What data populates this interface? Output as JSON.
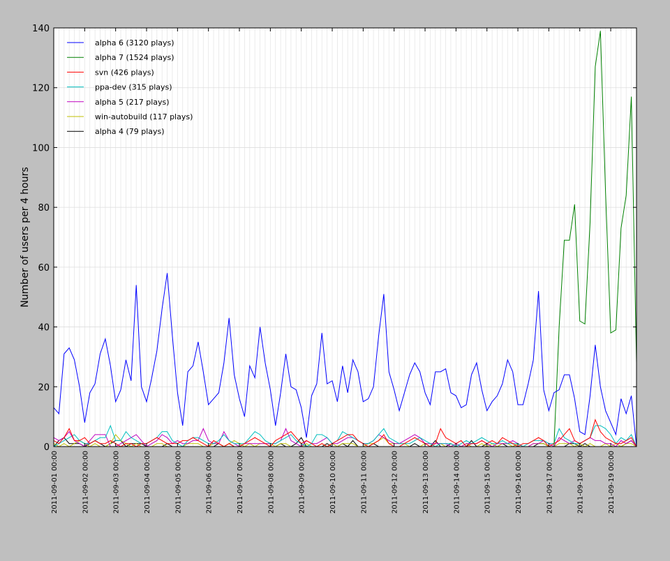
{
  "chart_data": {
    "type": "line",
    "title": "",
    "xlabel": "",
    "ylabel": "Number of users per 4 hours",
    "x_range": [
      "2011-09-01 00:00",
      "2011-09-19 20:00"
    ],
    "x_interval_hours": 4,
    "ylim": [
      0,
      140
    ],
    "yticks": [
      "0",
      "20",
      "40",
      "60",
      "80",
      "100",
      "120",
      "140"
    ],
    "xticks": [
      "2011-09-01 00:00",
      "2011-09-02 00:00",
      "2011-09-03 00:00",
      "2011-09-04 00:00",
      "2011-09-05 00:00",
      "2011-09-06 00:00",
      "2011-09-07 00:00",
      "2011-09-08 00:00",
      "2011-09-09 00:00",
      "2011-09-10 00:00",
      "2011-09-11 00:00",
      "2011-09-12 00:00",
      "2011-09-13 00:00",
      "2011-09-14 00:00",
      "2011-09-15 00:00",
      "2011-09-16 00:00",
      "2011-09-17 00:00",
      "2011-09-18 00:00",
      "2011-09-19 00:00"
    ],
    "grid": true,
    "legend_position": "top-left",
    "series": [
      {
        "name": "alpha 6 (3120 plays)",
        "color": "#0000ff",
        "values": [
          13,
          11,
          31,
          33,
          29,
          20,
          8,
          18,
          21,
          31,
          36,
          27,
          15,
          19,
          29,
          22,
          54,
          20,
          15,
          23,
          32,
          46,
          58,
          37,
          18,
          7,
          25,
          27,
          35,
          25,
          14,
          16,
          18,
          28,
          43,
          24,
          16,
          10,
          27,
          23,
          40,
          28,
          19,
          7,
          18,
          31,
          20,
          19,
          13,
          3,
          17,
          21,
          38,
          21,
          22,
          15,
          27,
          18,
          29,
          25,
          15,
          16,
          20,
          37,
          51,
          25,
          19,
          12,
          18,
          24,
          28,
          25,
          18,
          14,
          25,
          25,
          26,
          18,
          17,
          13,
          14,
          24,
          28,
          19,
          12,
          15,
          17,
          21,
          29,
          25,
          14,
          14,
          21,
          29,
          52,
          19,
          12,
          18,
          19,
          24,
          24,
          16,
          5,
          4,
          17,
          34,
          20,
          12,
          8,
          4,
          16,
          11,
          17,
          0
        ]
      },
      {
        "name": "alpha 7 (1524 plays)",
        "color": "#008000",
        "values": [
          0,
          0,
          0,
          0,
          0,
          0,
          0,
          0,
          0,
          0,
          0,
          0,
          0,
          0,
          0,
          0,
          0,
          0,
          0,
          0,
          0,
          0,
          0,
          0,
          0,
          0,
          0,
          0,
          0,
          0,
          0,
          0,
          0,
          0,
          0,
          0,
          0,
          0,
          0,
          0,
          0,
          0,
          0,
          0,
          0,
          0,
          0,
          0,
          0,
          0,
          0,
          0,
          0,
          0,
          0,
          0,
          0,
          0,
          0,
          0,
          0,
          0,
          0,
          0,
          0,
          0,
          0,
          0,
          0,
          0,
          0,
          0,
          0,
          0,
          0,
          0,
          0,
          0,
          0,
          0,
          0,
          0,
          0,
          0,
          0,
          0,
          0,
          0,
          0,
          0,
          0,
          0,
          0,
          0,
          0,
          0,
          0,
          0,
          40,
          69,
          69,
          81,
          42,
          41,
          75,
          127,
          139,
          85,
          38,
          39,
          73,
          84,
          117,
          28
        ]
      },
      {
        "name": "svn (426 plays)",
        "color": "#ff0000",
        "values": [
          2,
          1,
          3,
          6,
          2,
          2,
          3,
          1,
          2,
          1,
          1,
          2,
          1,
          0,
          1,
          1,
          0,
          1,
          1,
          2,
          3,
          2,
          1,
          1,
          1,
          2,
          2,
          3,
          2,
          1,
          0,
          2,
          1,
          0,
          1,
          0,
          0,
          1,
          2,
          3,
          2,
          1,
          0,
          2,
          3,
          4,
          5,
          3,
          1,
          2,
          1,
          0,
          1,
          0,
          1,
          2,
          3,
          4,
          4,
          2,
          1,
          0,
          1,
          2,
          4,
          1,
          0,
          0,
          1,
          2,
          3,
          2,
          1,
          0,
          1,
          6,
          3,
          2,
          1,
          2,
          0,
          1,
          1,
          2,
          1,
          2,
          1,
          3,
          2,
          1,
          0,
          1,
          1,
          2,
          3,
          2,
          0,
          1,
          2,
          4,
          6,
          2,
          1,
          2,
          3,
          9,
          5,
          3,
          2,
          1,
          1,
          2,
          3,
          0
        ]
      },
      {
        "name": "ppa-dev (315 plays)",
        "color": "#00bfbf",
        "values": [
          0,
          1,
          2,
          3,
          4,
          2,
          1,
          1,
          2,
          3,
          3,
          7,
          2,
          2,
          5,
          3,
          2,
          1,
          1,
          2,
          3,
          5,
          5,
          2,
          1,
          0,
          2,
          3,
          3,
          2,
          1,
          1,
          2,
          4,
          2,
          1,
          1,
          1,
          3,
          5,
          4,
          2,
          1,
          1,
          2,
          3,
          4,
          2,
          1,
          0,
          1,
          4,
          4,
          3,
          1,
          2,
          5,
          4,
          3,
          2,
          1,
          1,
          2,
          4,
          6,
          3,
          2,
          1,
          1,
          1,
          2,
          3,
          2,
          1,
          0,
          1,
          1,
          1,
          0,
          1,
          2,
          1,
          2,
          3,
          2,
          1,
          1,
          2,
          1,
          1,
          1,
          0,
          1,
          2,
          2,
          2,
          1,
          1,
          6,
          3,
          2,
          1,
          1,
          2,
          3,
          7,
          7,
          6,
          4,
          1,
          3,
          2,
          4,
          0
        ]
      },
      {
        "name": "alpha 5 (217 plays)",
        "color": "#bf00bf",
        "values": [
          3,
          2,
          3,
          5,
          2,
          1,
          0,
          2,
          4,
          4,
          4,
          0,
          0,
          1,
          2,
          3,
          4,
          2,
          0,
          1,
          2,
          4,
          3,
          1,
          2,
          1,
          1,
          2,
          2,
          6,
          2,
          1,
          1,
          5,
          2,
          1,
          0,
          1,
          1,
          1,
          1,
          1,
          1,
          1,
          2,
          6,
          2,
          1,
          0,
          2,
          1,
          1,
          2,
          3,
          1,
          1,
          2,
          3,
          3,
          2,
          1,
          1,
          2,
          4,
          3,
          2,
          1,
          1,
          2,
          3,
          4,
          3,
          1,
          1,
          1,
          1,
          1,
          0,
          1,
          0,
          1,
          1,
          1,
          2,
          1,
          0,
          1,
          1,
          1,
          2,
          1,
          0,
          0,
          1,
          1,
          2,
          1,
          0,
          3,
          2,
          1,
          2,
          1,
          2,
          3,
          2,
          2,
          1,
          1,
          0,
          2,
          1,
          2,
          0
        ]
      },
      {
        "name": "win-autobuild (117 plays)",
        "color": "#bfbf00",
        "values": [
          1,
          0,
          1,
          0,
          1,
          2,
          1,
          0,
          1,
          0,
          0,
          1,
          4,
          2,
          1,
          0,
          1,
          0,
          0,
          0,
          1,
          1,
          0,
          0,
          0,
          0,
          1,
          1,
          1,
          0,
          0,
          1,
          1,
          0,
          1,
          2,
          1,
          0,
          1,
          0,
          1,
          1,
          1,
          0,
          1,
          1,
          0,
          0,
          0,
          1,
          0,
          0,
          1,
          0,
          1,
          0,
          1,
          1,
          1,
          0,
          0,
          1,
          1,
          2,
          3,
          1,
          1,
          1,
          1,
          0,
          0,
          0,
          1,
          1,
          0,
          1,
          0,
          0,
          1,
          0,
          1,
          0,
          0,
          1,
          0,
          1,
          0,
          1,
          1,
          0,
          1,
          0,
          0,
          1,
          1,
          1,
          0,
          0,
          1,
          1,
          1,
          0,
          1,
          0,
          1,
          0,
          0,
          1,
          0,
          1,
          0,
          1,
          1,
          0
        ]
      },
      {
        "name": "alpha 4 (79 plays)",
        "color": "#000000",
        "values": [
          0,
          2,
          3,
          1,
          1,
          1,
          0,
          1,
          2,
          1,
          0,
          1,
          2,
          2,
          0,
          1,
          1,
          1,
          0,
          0,
          0,
          0,
          1,
          0,
          0,
          0,
          0,
          0,
          0,
          0,
          0,
          0,
          1,
          0,
          1,
          0,
          0,
          0,
          0,
          0,
          0,
          0,
          0,
          0,
          1,
          0,
          0,
          1,
          3,
          0,
          0,
          0,
          0,
          1,
          0,
          0,
          1,
          0,
          2,
          0,
          0,
          0,
          1,
          0,
          0,
          0,
          0,
          0,
          0,
          0,
          1,
          0,
          0,
          0,
          2,
          0,
          0,
          1,
          0,
          0,
          0,
          2,
          0,
          0,
          1,
          0,
          0,
          1,
          0,
          0,
          1,
          0,
          0,
          0,
          1,
          1,
          0,
          0,
          0,
          0,
          1,
          1,
          0,
          1,
          0,
          0,
          0,
          0,
          0,
          0,
          0,
          1,
          2,
          0
        ]
      }
    ]
  }
}
